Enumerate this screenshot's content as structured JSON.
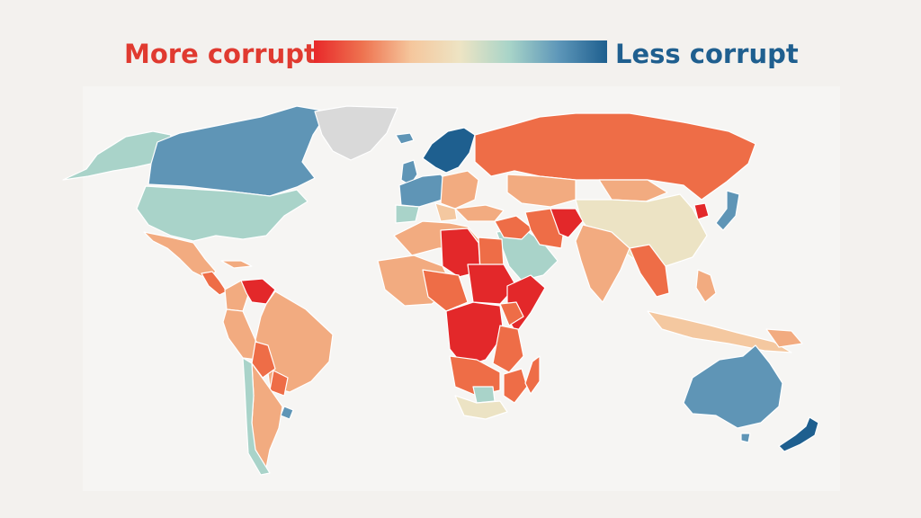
{
  "legend": {
    "more_label": "More corrupt",
    "less_label": "Less corrupt",
    "gradient_colors": [
      "#e8282a",
      "#ee7350",
      "#f5c79d",
      "#ede4c4",
      "#a8d4c8",
      "#5e97b9",
      "#1e5f8f"
    ],
    "more_color": "#e03a30",
    "less_color": "#1f5f8f"
  },
  "map": {
    "colors": {
      "very_high": "#e3282a",
      "high": "#ee6d47",
      "medium": "#f2ab80",
      "medium_low": "#f4c8a0",
      "neutral": "#ece3c4",
      "low": "#a9d3c9",
      "lower": "#5f95b6",
      "lowest": "#1e5f8f",
      "no_data": "#d9d9d9"
    }
  }
}
